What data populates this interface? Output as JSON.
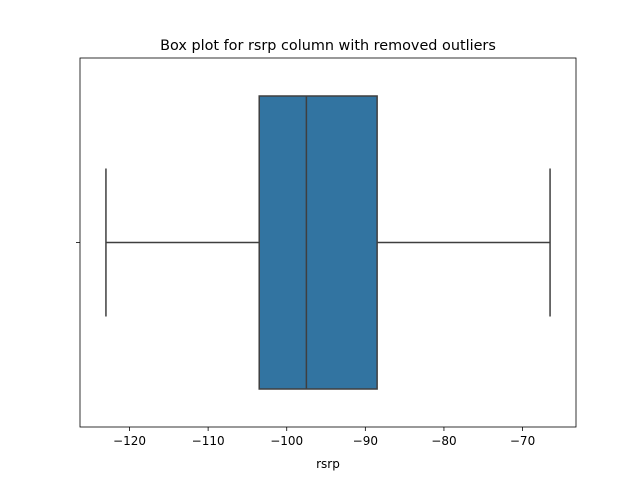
{
  "chart_data": {
    "type": "box",
    "title": "Box plot for rsrp column with removed outliers",
    "xlabel": "rsrp",
    "ylabel": "",
    "orientation": "horizontal",
    "xlim": [
      -126.3,
      -63.2
    ],
    "x_ticks": [
      -120,
      -110,
      -100,
      -90,
      -80,
      -70
    ],
    "x_tick_labels": [
      "−120",
      "−110",
      "−100",
      "−90",
      "−80",
      "−70"
    ],
    "box": {
      "whisker_low": -123,
      "q1": -103.5,
      "median": -97.5,
      "q3": -88.5,
      "whisker_high": -66.5
    },
    "box_color": "#3274a1",
    "line_color": "#3f3f3f",
    "grid": false
  }
}
